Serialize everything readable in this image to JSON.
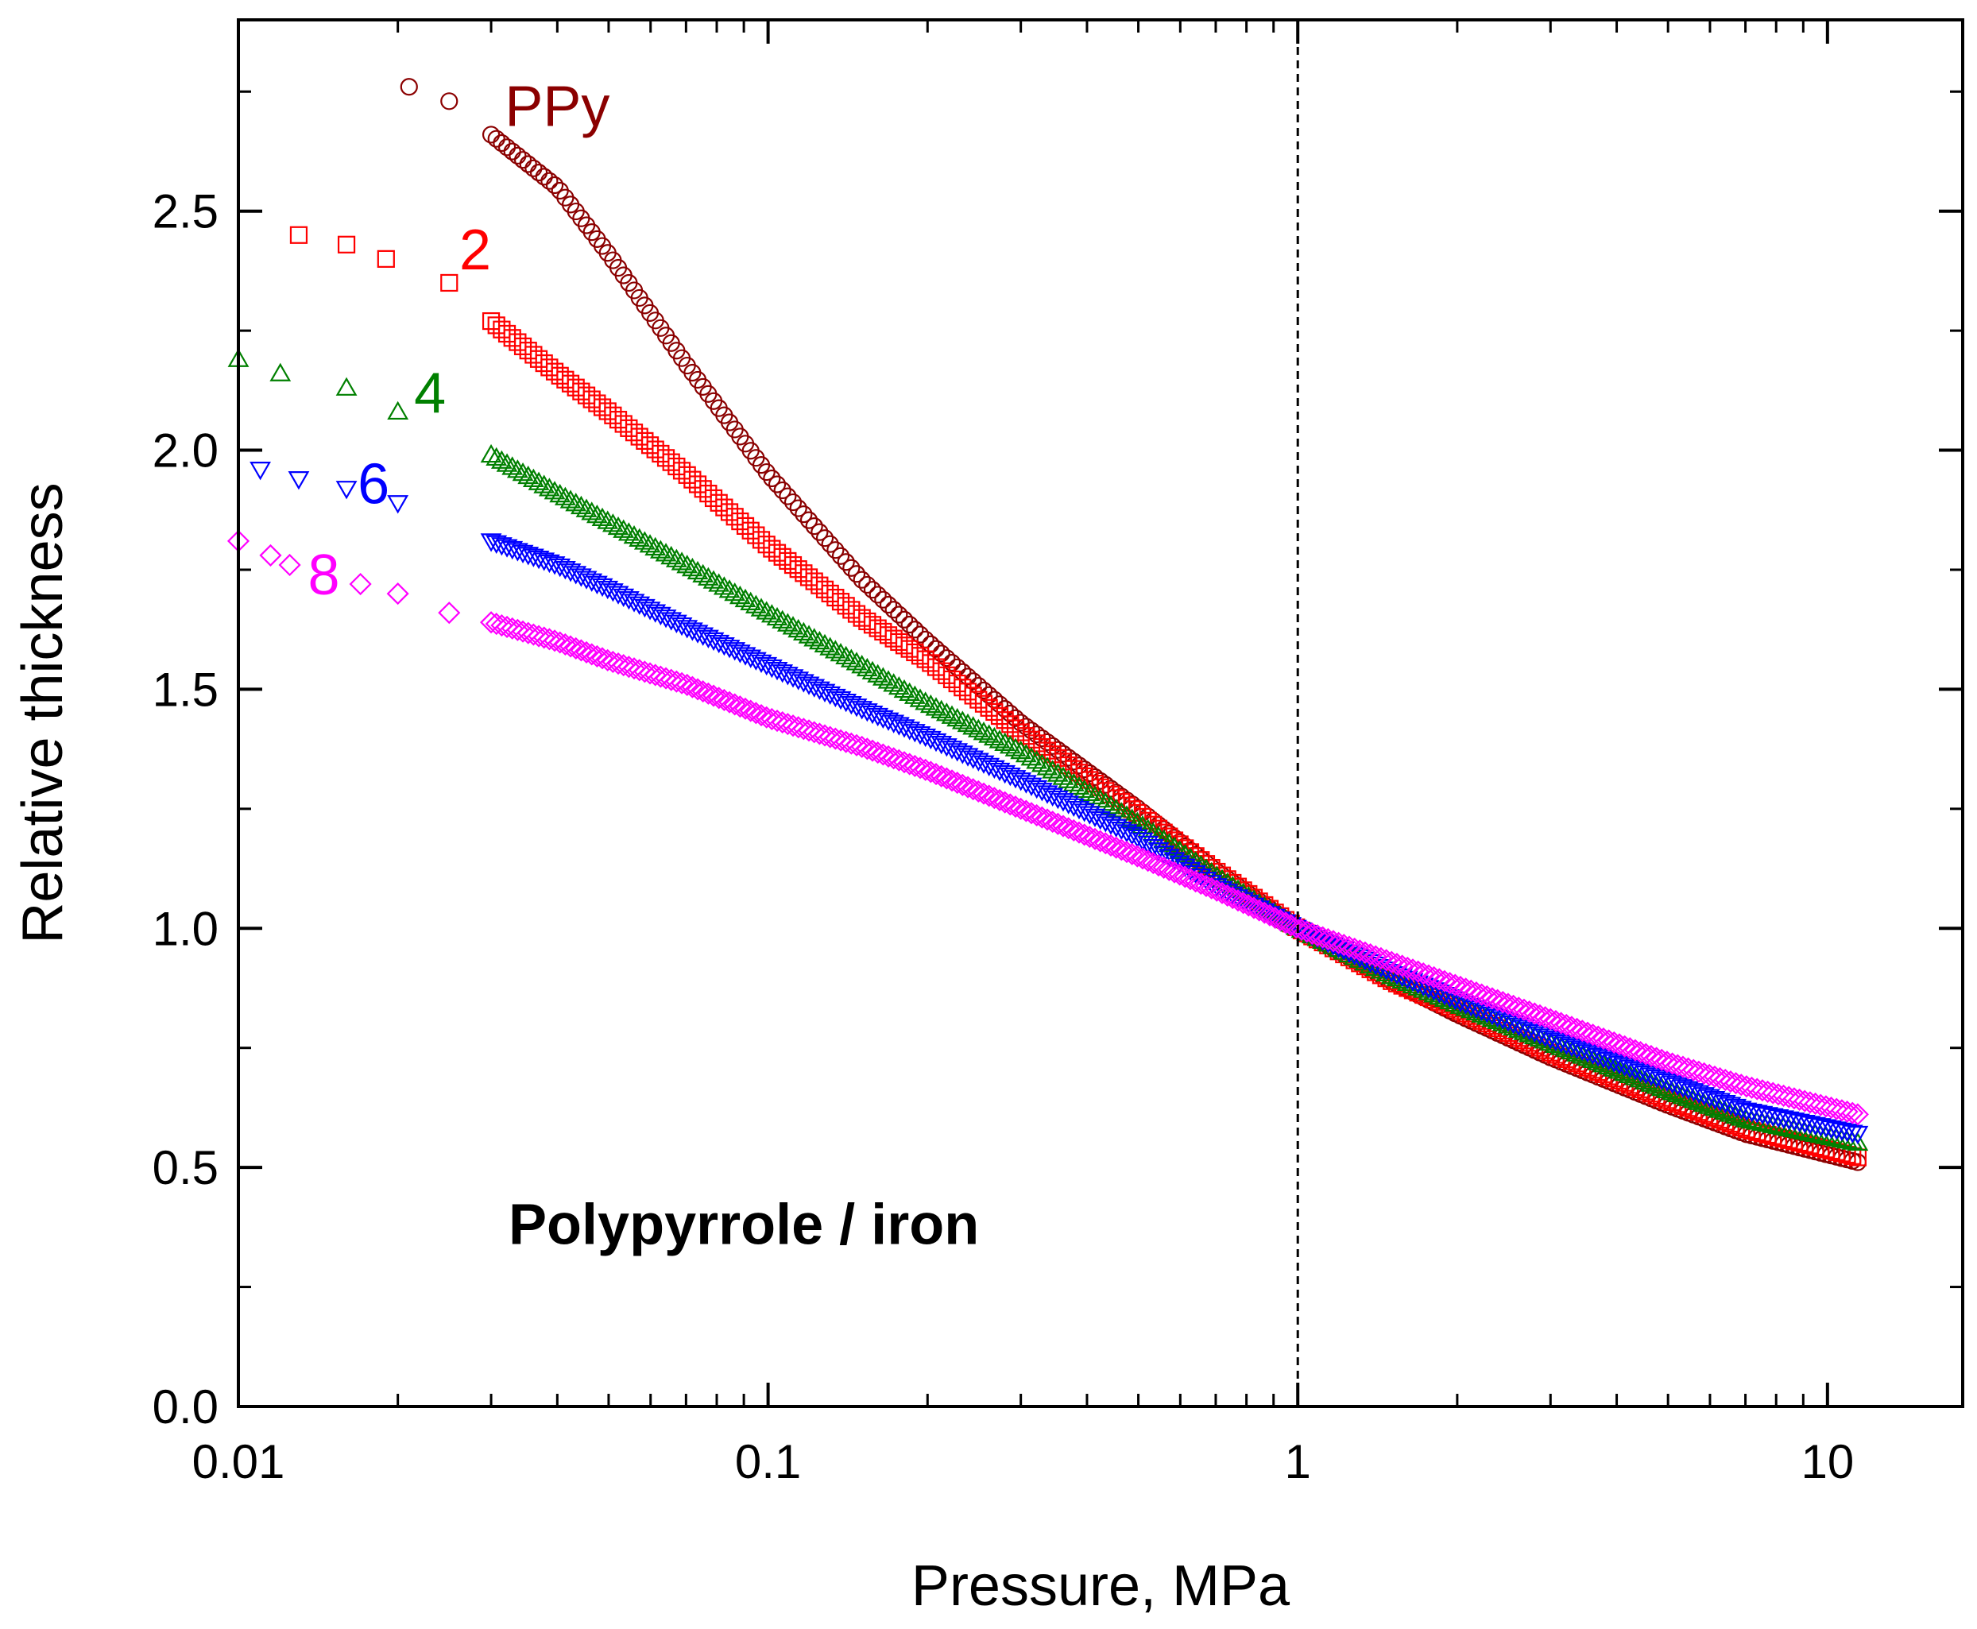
{
  "chart_data": {
    "type": "scatter",
    "title": "",
    "xlabel": "Pressure, MPa",
    "ylabel": "Relative thickness",
    "xscale": "log",
    "xlim": [
      0.01,
      18
    ],
    "ylim": [
      0.0,
      2.9
    ],
    "xticks": [
      {
        "value": 0.01,
        "label": "0.01"
      },
      {
        "value": 0.1,
        "label": "0.1"
      },
      {
        "value": 1,
        "label": "1"
      },
      {
        "value": 10,
        "label": "10"
      }
    ],
    "yticks": [
      {
        "value": 0.0,
        "label": "0.0"
      },
      {
        "value": 0.5,
        "label": "0.5"
      },
      {
        "value": 1.0,
        "label": "1.0"
      },
      {
        "value": 1.5,
        "label": "1.5"
      },
      {
        "value": 2.0,
        "label": "2.0"
      },
      {
        "value": 2.5,
        "label": "2.5"
      }
    ],
    "reference_line": {
      "x": 1,
      "style": "dashed"
    },
    "annotation": "Polypyrrole / iron",
    "series": [
      {
        "name": "PPy",
        "color": "#8b0000",
        "marker": "circle",
        "label_at": {
          "x": 0.04,
          "y": 2.72
        },
        "points": [
          [
            0.021,
            2.76
          ],
          [
            0.025,
            2.73
          ],
          [
            0.03,
            2.66
          ],
          [
            0.04,
            2.55
          ],
          [
            0.05,
            2.41
          ],
          [
            0.07,
            2.18
          ],
          [
            0.1,
            1.95
          ],
          [
            0.15,
            1.73
          ],
          [
            0.2,
            1.6
          ],
          [
            0.3,
            1.43
          ],
          [
            0.5,
            1.25
          ],
          [
            0.7,
            1.12
          ],
          [
            1.0,
            1.0
          ],
          [
            1.5,
            0.89
          ],
          [
            2.0,
            0.82
          ],
          [
            3.0,
            0.73
          ],
          [
            5.0,
            0.63
          ],
          [
            7.0,
            0.57
          ],
          [
            11.5,
            0.51
          ]
        ]
      },
      {
        "name": "2",
        "color": "#ff0000",
        "marker": "square",
        "label_at": {
          "x": 0.028,
          "y": 2.42
        },
        "points": [
          [
            0.013,
            2.45
          ],
          [
            0.016,
            2.43
          ],
          [
            0.019,
            2.4
          ],
          [
            0.025,
            2.35
          ],
          [
            0.03,
            2.27
          ],
          [
            0.04,
            2.16
          ],
          [
            0.05,
            2.08
          ],
          [
            0.07,
            1.95
          ],
          [
            0.1,
            1.8
          ],
          [
            0.15,
            1.65
          ],
          [
            0.2,
            1.56
          ],
          [
            0.3,
            1.41
          ],
          [
            0.5,
            1.24
          ],
          [
            0.7,
            1.12
          ],
          [
            1.0,
            1.0
          ],
          [
            1.5,
            0.89
          ],
          [
            2.0,
            0.83
          ],
          [
            3.0,
            0.74
          ],
          [
            5.0,
            0.64
          ],
          [
            7.0,
            0.58
          ],
          [
            11.5,
            0.52
          ]
        ]
      },
      {
        "name": "4",
        "color": "#008000",
        "marker": "triangle-up",
        "label_at": {
          "x": 0.023,
          "y": 2.12
        },
        "points": [
          [
            0.01,
            2.19
          ],
          [
            0.012,
            2.16
          ],
          [
            0.016,
            2.13
          ],
          [
            0.02,
            2.08
          ],
          [
            0.03,
            1.99
          ],
          [
            0.04,
            1.91
          ],
          [
            0.05,
            1.85
          ],
          [
            0.07,
            1.76
          ],
          [
            0.1,
            1.66
          ],
          [
            0.15,
            1.55
          ],
          [
            0.2,
            1.47
          ],
          [
            0.3,
            1.37
          ],
          [
            0.5,
            1.22
          ],
          [
            0.7,
            1.11
          ],
          [
            1.0,
            1.0
          ],
          [
            1.5,
            0.9
          ],
          [
            2.0,
            0.84
          ],
          [
            3.0,
            0.76
          ],
          [
            5.0,
            0.66
          ],
          [
            7.0,
            0.6
          ],
          [
            11.5,
            0.55
          ]
        ]
      },
      {
        "name": "6",
        "color": "#0000ff",
        "marker": "triangle-down",
        "label_at": {
          "x": 0.018,
          "y": 1.93
        },
        "points": [
          [
            0.011,
            1.96
          ],
          [
            0.013,
            1.94
          ],
          [
            0.016,
            1.92
          ],
          [
            0.02,
            1.89
          ],
          [
            0.03,
            1.81
          ],
          [
            0.04,
            1.76
          ],
          [
            0.05,
            1.71
          ],
          [
            0.07,
            1.63
          ],
          [
            0.1,
            1.55
          ],
          [
            0.15,
            1.46
          ],
          [
            0.2,
            1.4
          ],
          [
            0.3,
            1.31
          ],
          [
            0.5,
            1.19
          ],
          [
            0.7,
            1.09
          ],
          [
            1.0,
            1.0
          ],
          [
            1.5,
            0.91
          ],
          [
            2.0,
            0.85
          ],
          [
            3.0,
            0.77
          ],
          [
            5.0,
            0.68
          ],
          [
            7.0,
            0.62
          ],
          [
            11.5,
            0.57
          ]
        ]
      },
      {
        "name": "8",
        "color": "#ff00ff",
        "marker": "diamond",
        "label_at": {
          "x": 0.0145,
          "y": 1.74
        },
        "points": [
          [
            0.01,
            1.81
          ],
          [
            0.0115,
            1.78
          ],
          [
            0.0125,
            1.76
          ],
          [
            0.017,
            1.72
          ],
          [
            0.02,
            1.7
          ],
          [
            0.025,
            1.66
          ],
          [
            0.03,
            1.64
          ],
          [
            0.04,
            1.6
          ],
          [
            0.05,
            1.56
          ],
          [
            0.07,
            1.51
          ],
          [
            0.1,
            1.44
          ],
          [
            0.15,
            1.38
          ],
          [
            0.2,
            1.33
          ],
          [
            0.3,
            1.25
          ],
          [
            0.5,
            1.15
          ],
          [
            0.7,
            1.08
          ],
          [
            1.0,
            1.0
          ],
          [
            1.5,
            0.93
          ],
          [
            2.0,
            0.88
          ],
          [
            3.0,
            0.81
          ],
          [
            5.0,
            0.72
          ],
          [
            7.0,
            0.67
          ],
          [
            11.5,
            0.61
          ]
        ]
      }
    ]
  }
}
